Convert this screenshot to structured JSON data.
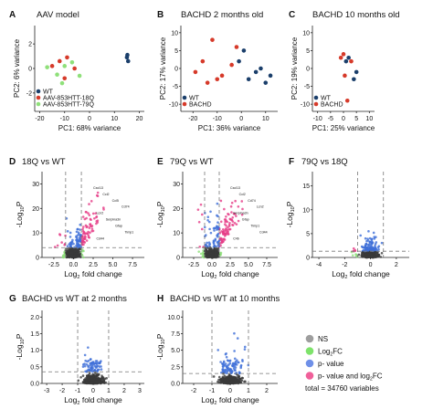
{
  "panels": [
    {
      "id": "A",
      "title": "AAV model",
      "xlabel": "PC1: 68% variance",
      "ylabel": "PC2: 6% variance",
      "xticks": [
        "-20",
        "-10",
        "0",
        "10",
        "20"
      ],
      "yticks": [
        "2",
        "0",
        "-2"
      ],
      "legend": [
        "WT",
        "AAV-853HTT-18Q",
        "AAV-853HTT-79Q"
      ]
    },
    {
      "id": "B",
      "title": "BACHD 2 months old",
      "xlabel": "PC1: 36% variance",
      "ylabel": "PC2: 17% variance",
      "xticks": [
        "-20",
        "-10",
        "0",
        "10"
      ],
      "yticks": [
        "10",
        "5",
        "0",
        "-5",
        "-10"
      ],
      "legend": [
        "WT",
        "BACHD"
      ]
    },
    {
      "id": "C",
      "title": "BACHD 10 months old",
      "xlabel": "PC1: 25% variance",
      "ylabel": "PC2: 19% variance",
      "xticks": [
        "-10",
        "-5",
        "0",
        "5",
        "10"
      ],
      "yticks": [
        "10",
        "5",
        "0",
        "-5",
        "-10"
      ],
      "legend": [
        "WT",
        "BACHD"
      ]
    },
    {
      "id": "D",
      "title": "18Q vs WT",
      "xlabel": "fold change",
      "xticks": [
        "-2.5",
        "0.0",
        "2.5",
        "5.0",
        "7.5"
      ],
      "yticks": [
        "30",
        "20",
        "10",
        "0"
      ],
      "gene_labels": [
        "Cxcl13",
        "Ccl2",
        "Ccl5",
        "Cd74",
        "Lcn2",
        "Serpina3n",
        "Gfap",
        "Timp1",
        "Cd44"
      ]
    },
    {
      "id": "E",
      "title": "79Q vs WT",
      "xlabel": "fold change",
      "xticks": [
        "-2.5",
        "0.0",
        "2.5",
        "5.0",
        "7.5"
      ],
      "yticks": [
        "30",
        "20",
        "10",
        "0"
      ],
      "gene_labels": [
        "Cxcl13",
        "Ccl2",
        "Cd74",
        "Lcn2",
        "Serpina3n",
        "Gfap",
        "Timp1",
        "Cd44",
        "C4b"
      ]
    },
    {
      "id": "F",
      "title": "79Q vs 18Q",
      "xlabel": "fold change",
      "xticks": [
        "-4",
        "-2",
        "0",
        "2"
      ],
      "yticks": [
        "15",
        "10",
        "5",
        "0"
      ]
    },
    {
      "id": "G",
      "title": "BACHD vs WT at 2 months",
      "xlabel": "fold change",
      "xticks": [
        "-3",
        "-2",
        "-1",
        "0",
        "1",
        "2",
        "3"
      ],
      "yticks": [
        "2.0",
        "1.5",
        "1.0",
        "0.5",
        "0.0"
      ]
    },
    {
      "id": "H",
      "title": "BACHD vs WT at 10 months",
      "xlabel": "fold change",
      "xticks": [
        "-2",
        "-1",
        "0",
        "1",
        "2"
      ],
      "yticks": [
        "10.0",
        "7.5",
        "5.0",
        "2.5",
        "0.0"
      ]
    }
  ],
  "volcano_ylabel": {
    "minus": "-Log",
    "sub": "10",
    "p": "P"
  },
  "volcano_xlabel": {
    "pre": "Log",
    "sub": "2",
    "post": " fold change"
  },
  "legend": {
    "entries": [
      {
        "label": "NS",
        "color": "#9e9e9e"
      },
      {
        "label": "Log",
        "sub": "2",
        "tail": "FC",
        "color": "#7ee36b"
      },
      {
        "label": "p- value",
        "color": "#6f90e8"
      },
      {
        "label": "p- value and log",
        "sub": "2",
        "tail": "FC",
        "color": "#f0609a"
      }
    ],
    "total": "total = 34760 variables"
  },
  "colors": {
    "wt": "#1b3f6b",
    "red": "#d63a2a",
    "green": "#8fe07a",
    "ns": "#3a3a3a",
    "blue": "#3f6fd8",
    "pink": "#e63c87"
  },
  "chart_data": [
    {
      "type": "scatter",
      "panel": "A",
      "title": "AAV model",
      "xlabel": "PC1: 68% variance",
      "ylabel": "PC2: 6% variance",
      "xlim": [
        -22,
        22
      ],
      "ylim": [
        -3.5,
        3.5
      ],
      "series": [
        {
          "name": "WT",
          "color": "#1b3f6b",
          "x": [
            15,
            15.5,
            15.2
          ],
          "y": [
            0.9,
            0.6,
            1.1
          ]
        },
        {
          "name": "AAV-853HTT-18Q",
          "color": "#d63a2a",
          "x": [
            -15,
            -10,
            -9,
            -12,
            -6
          ],
          "y": [
            0.2,
            -0.8,
            0.9,
            0.6,
            0.0
          ]
        },
        {
          "name": "AAV-853HTT-79Q",
          "color": "#8fe07a",
          "x": [
            -17,
            -13,
            -10,
            -7,
            -4,
            -11
          ],
          "y": [
            0.1,
            -0.5,
            0.2,
            0.5,
            -0.6,
            -1.2
          ]
        }
      ]
    },
    {
      "type": "scatter",
      "panel": "B",
      "title": "BACHD 2 months old",
      "xlabel": "PC1: 36% variance",
      "ylabel": "PC2: 17% variance",
      "xlim": [
        -25,
        15
      ],
      "ylim": [
        -12,
        12
      ],
      "series": [
        {
          "name": "WT",
          "color": "#1b3f6b",
          "x": [
            -1,
            1,
            3,
            6,
            8,
            10,
            12
          ],
          "y": [
            2,
            5,
            -3,
            -1,
            0,
            -4,
            -2
          ]
        },
        {
          "name": "BACHD",
          "color": "#d63a2a",
          "x": [
            -19,
            -16,
            -14,
            -12,
            -10,
            -8,
            -4,
            -2
          ],
          "y": [
            -1,
            2,
            -4,
            8,
            -3,
            -2,
            1,
            6
          ]
        }
      ]
    },
    {
      "type": "scatter",
      "panel": "C",
      "title": "BACHD 10 months old",
      "xlabel": "PC1: 25% variance",
      "ylabel": "PC2: 19% variance",
      "xlim": [
        -12,
        12
      ],
      "ylim": [
        -12,
        12
      ],
      "series": [
        {
          "name": "WT",
          "color": "#1b3f6b",
          "x": [
            1,
            2,
            4,
            5
          ],
          "y": [
            2,
            3,
            -3,
            -1
          ]
        },
        {
          "name": "BACHD",
          "color": "#d63a2a",
          "x": [
            -1,
            0,
            0.5,
            1.5,
            3
          ],
          "y": [
            3,
            4,
            -2,
            -9,
            2
          ]
        }
      ]
    },
    {
      "type": "scatter",
      "panel": "D",
      "title": "18Q vs WT",
      "xlim": [
        -4,
        9
      ],
      "ylim": [
        0,
        35
      ],
      "p_cutoff_y": 4,
      "fc_cutoff": [
        -1,
        1
      ]
    },
    {
      "type": "scatter",
      "panel": "E",
      "title": "79Q vs WT",
      "xlim": [
        -4,
        9
      ],
      "ylim": [
        0,
        35
      ],
      "p_cutoff_y": 4,
      "fc_cutoff": [
        -1,
        1
      ]
    },
    {
      "type": "scatter",
      "panel": "F",
      "title": "79Q vs 18Q",
      "xlim": [
        -4.5,
        3
      ],
      "ylim": [
        0,
        18
      ],
      "p_cutoff_y": 1.3,
      "fc_cutoff": [
        -1,
        1
      ]
    },
    {
      "type": "scatter",
      "panel": "G",
      "title": "BACHD vs WT at 2 months",
      "xlim": [
        -3.3,
        3.3
      ],
      "ylim": [
        0,
        2.2
      ],
      "p_cutoff_y": 0.35,
      "fc_cutoff": [
        -1,
        1
      ]
    },
    {
      "type": "scatter",
      "panel": "H",
      "title": "BACHD vs WT at 10 months",
      "xlim": [
        -2.6,
        2.6
      ],
      "ylim": [
        0,
        11
      ],
      "p_cutoff_y": 1.5,
      "fc_cutoff": [
        -1,
        1
      ]
    }
  ]
}
